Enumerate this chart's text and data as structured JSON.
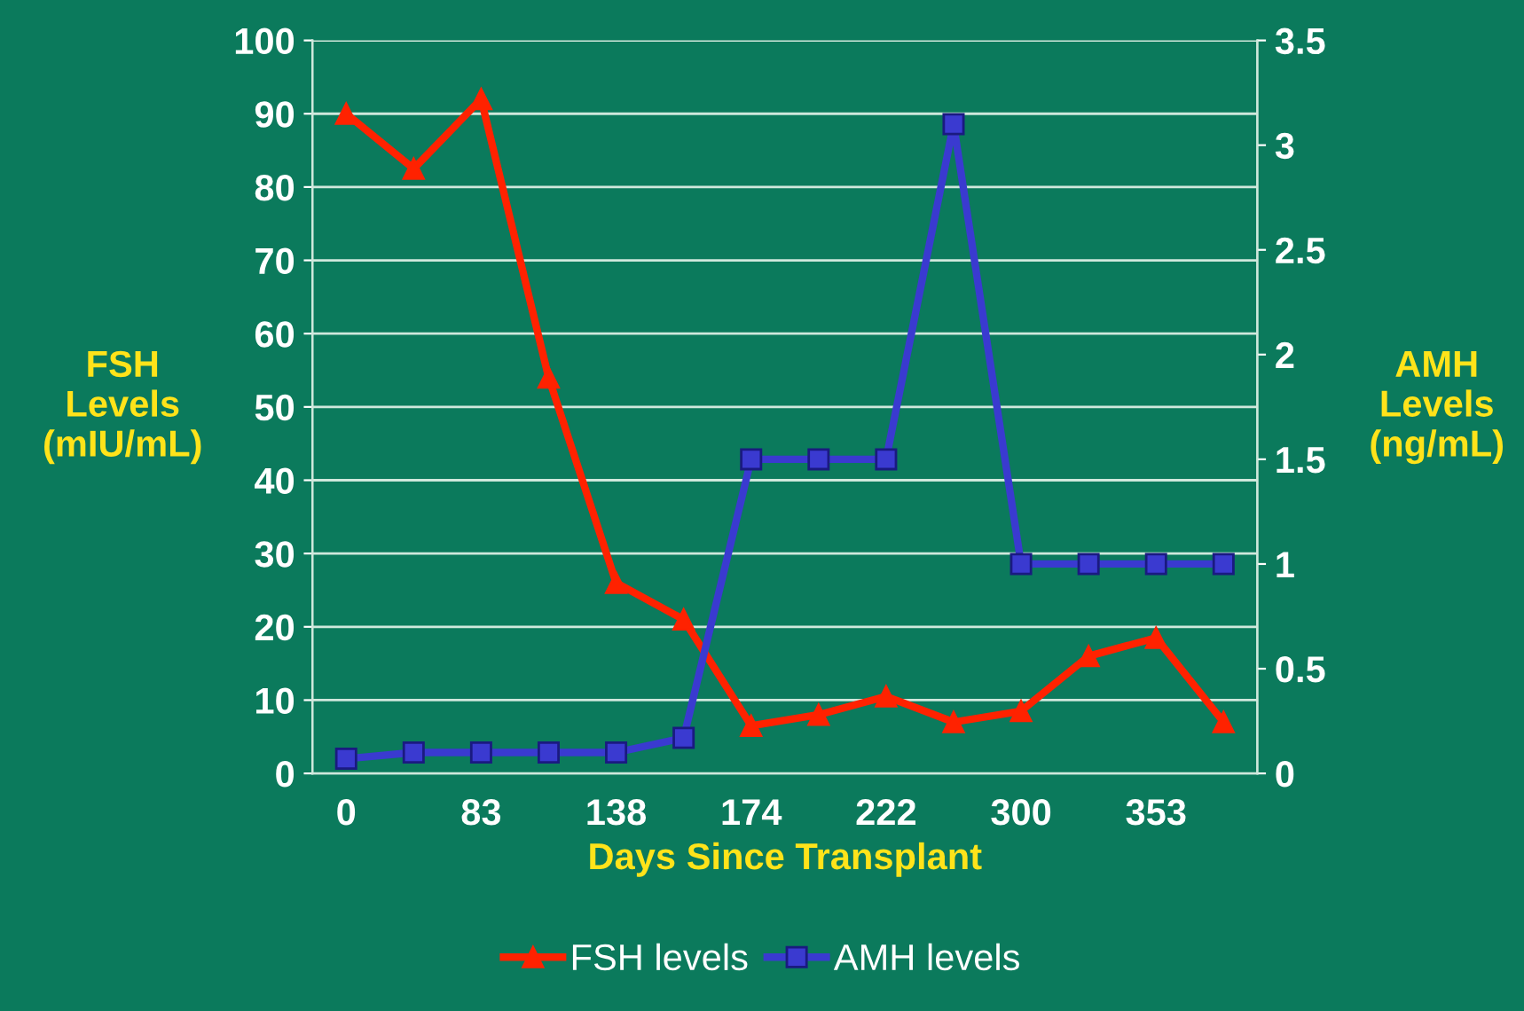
{
  "chart_data": {
    "type": "line",
    "xlabel": "Days Since Transplant",
    "ylabel": "FSH\nLevels\n(mIU/mL)",
    "y2label": "AMH\nLevels\n(ng/mL)",
    "categories": [
      "0",
      null,
      "83",
      null,
      "138",
      null,
      "174",
      null,
      "222",
      null,
      "300",
      null,
      "353",
      null
    ],
    "series": [
      {
        "name": "FSH levels",
        "color": "#ff2200",
        "marker": "triangle",
        "values": [
          90,
          82.5,
          92,
          54,
          26,
          21,
          6.5,
          8,
          10.5,
          7,
          8.5,
          16,
          18.5,
          7
        ]
      },
      {
        "name": "AMH levels",
        "color": "#3a3ad0",
        "marker": "square",
        "axis": "y2",
        "values": [
          0.07,
          0.1,
          0.1,
          0.1,
          0.1,
          0.17,
          1.5,
          1.5,
          1.5,
          3.1,
          1.0,
          1.0,
          1.0,
          1.0
        ]
      }
    ],
    "ylim": [
      0,
      100
    ],
    "yticks": [
      0,
      10,
      20,
      30,
      40,
      50,
      60,
      70,
      80,
      90,
      100
    ],
    "y2lim": [
      0,
      3.5
    ],
    "y2ticks": [
      0,
      0.5,
      1,
      1.5,
      2,
      2.5,
      3,
      3.5
    ],
    "grid": "y",
    "legend": "bottom",
    "line_style": "solid"
  }
}
